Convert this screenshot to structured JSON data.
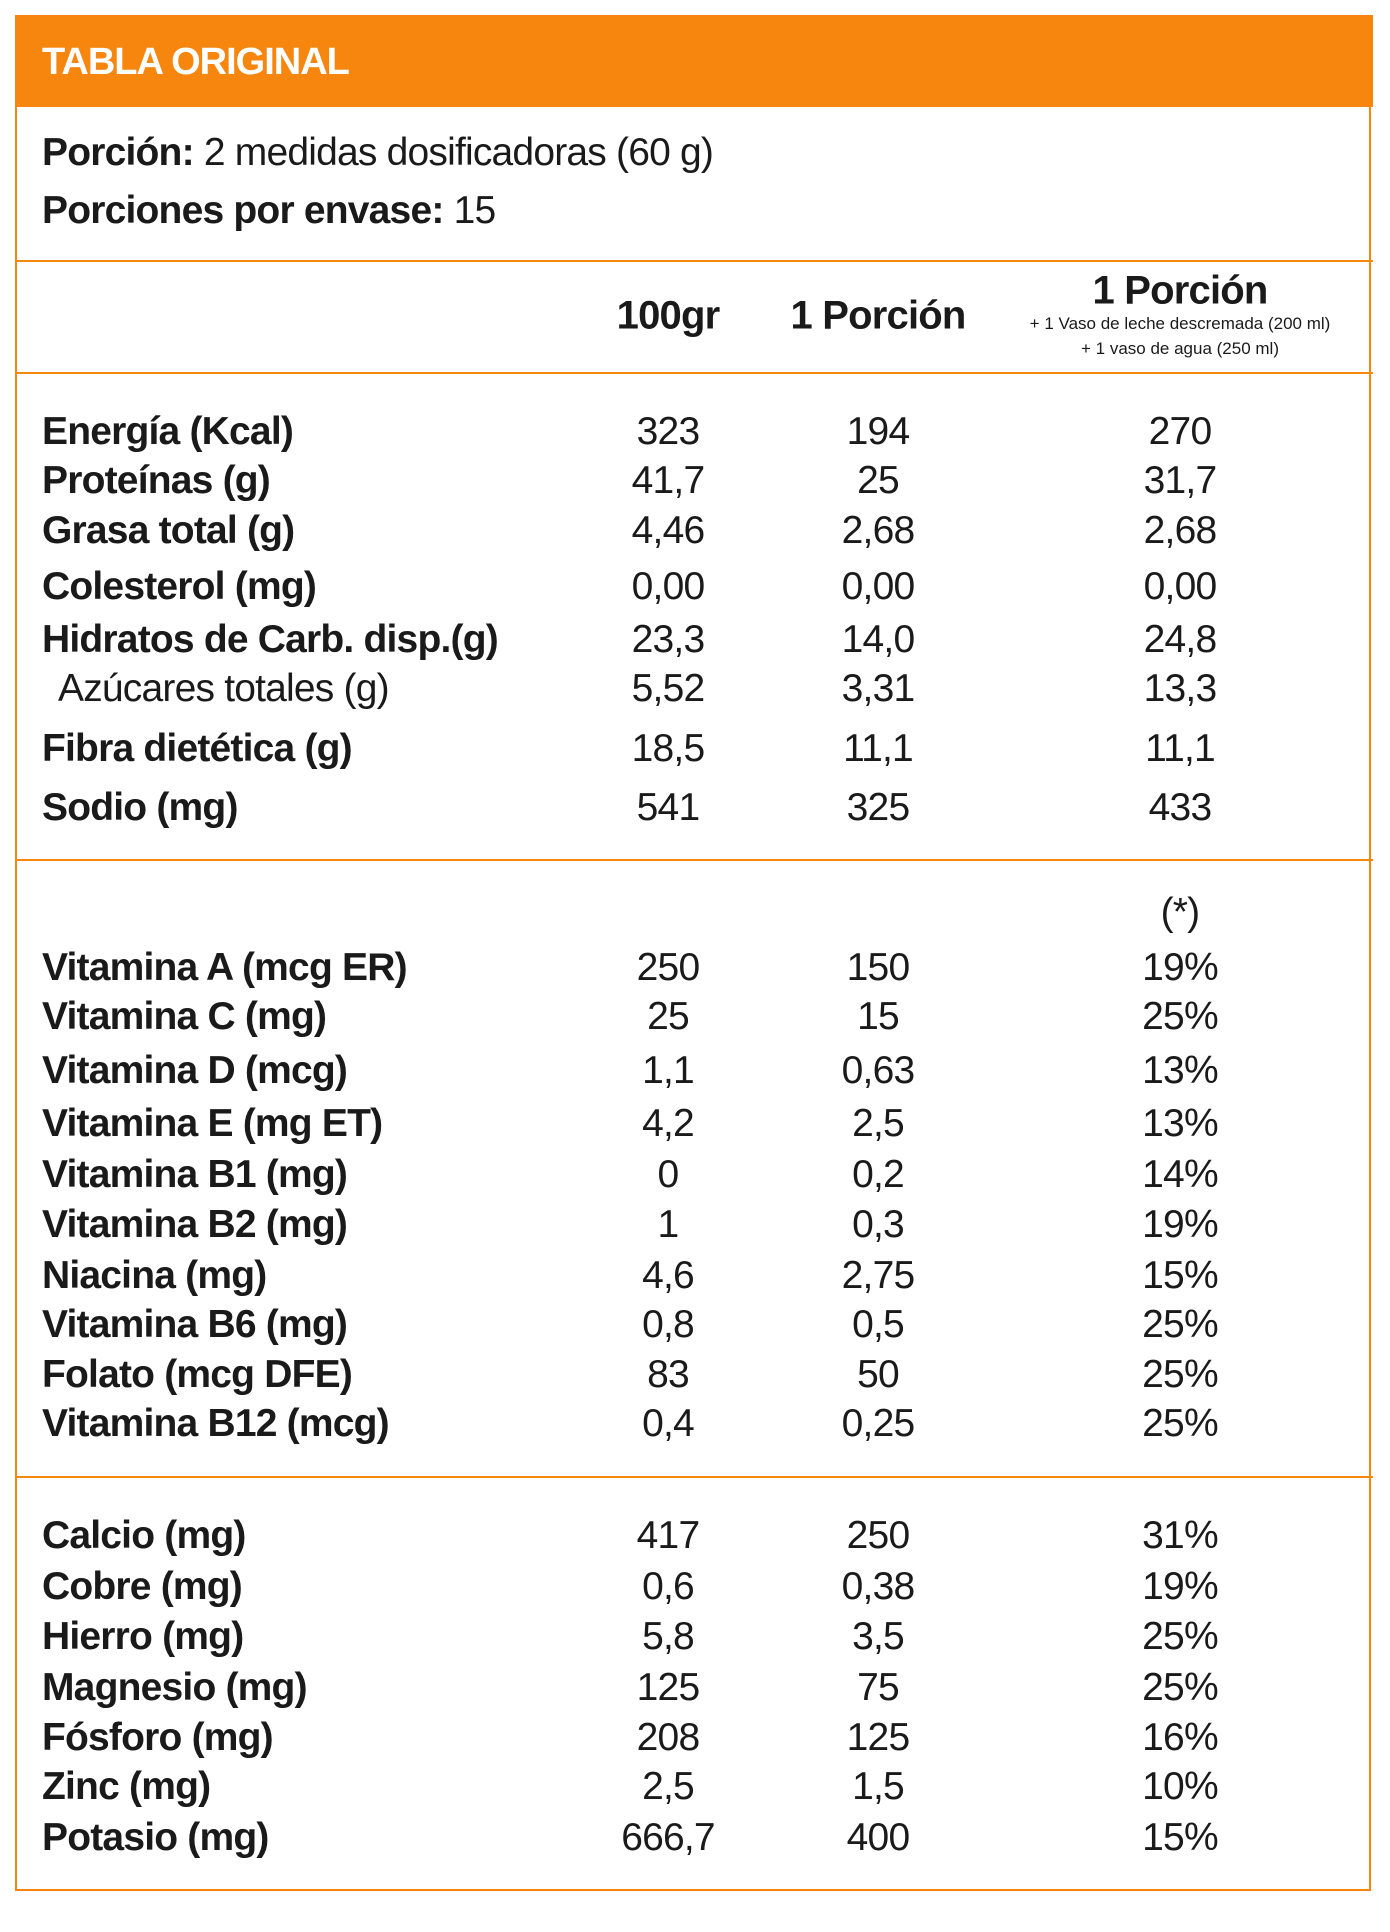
{
  "title": "TABLA ORIGINAL",
  "portion": {
    "label": "Porción:",
    "value": "2 medidas dosificadoras (60 g)"
  },
  "servings": {
    "label": "Porciones por envase:",
    "value": "15"
  },
  "columns": {
    "c1": "100gr",
    "c2": "1 Porción",
    "c3": "1 Porción",
    "c3_note1": "+ 1 Vaso de leche descremada (200 ml)",
    "c3_note2": "+ 1 vaso de agua (250 ml)"
  },
  "vitamin_note": "(*)",
  "macros": [
    {
      "label": "Energía (Kcal)",
      "v1": "323",
      "v2": "194",
      "v3": "270"
    },
    {
      "label": "Proteínas (g)",
      "v1": "41,7",
      "v2": "25",
      "v3": "31,7"
    },
    {
      "label": "Grasa total (g)",
      "v1": "4,46",
      "v2": "2,68",
      "v3": "2,68"
    },
    {
      "label": "Colesterol (mg)",
      "v1": "0,00",
      "v2": "0,00",
      "v3": "0,00"
    },
    {
      "label": "Hidratos de Carb. disp.(g)",
      "v1": "23,3",
      "v2": "14,0",
      "v3": "24,8"
    },
    {
      "label": "Azúcares totales (g)",
      "v1": "5,52",
      "v2": "3,31",
      "v3": "13,3",
      "sub": true
    },
    {
      "label": "Fibra dietética (g)",
      "v1": "18,5",
      "v2": "11,1",
      "v3": "11,1"
    },
    {
      "label": "Sodio (mg)",
      "v1": "541",
      "v2": "325",
      "v3": "433"
    }
  ],
  "vitamins": [
    {
      "label": "Vitamina A (mcg ER)",
      "v1": "250",
      "v2": "150",
      "v3": "19%"
    },
    {
      "label": "Vitamina C (mg)",
      "v1": "25",
      "v2": "15",
      "v3": "25%"
    },
    {
      "label": "Vitamina D (mcg)",
      "v1": "1,1",
      "v2": "0,63",
      "v3": "13%"
    },
    {
      "label": "Vitamina E (mg ET)",
      "v1": "4,2",
      "v2": "2,5",
      "v3": "13%"
    },
    {
      "label": "Vitamina B1 (mg)",
      "v1": "0",
      "v2": "0,2",
      "v3": "14%"
    },
    {
      "label": "Vitamina B2 (mg)",
      "v1": "1",
      "v2": "0,3",
      "v3": "19%"
    },
    {
      "label": "Niacina (mg)",
      "v1": "4,6",
      "v2": "2,75",
      "v3": "15%"
    },
    {
      "label": "Vitamina B6 (mg)",
      "v1": "0,8",
      "v2": "0,5",
      "v3": "25%"
    },
    {
      "label": "Folato (mcg DFE)",
      "v1": "83",
      "v2": "50",
      "v3": "25%"
    },
    {
      "label": "Vitamina B12 (mcg)",
      "v1": "0,4",
      "v2": "0,25",
      "v3": "25%"
    }
  ],
  "minerals": [
    {
      "label": "Calcio (mg)",
      "v1": "417",
      "v2": "250",
      "v3": "31%"
    },
    {
      "label": "Cobre (mg)",
      "v1": "0,6",
      "v2": "0,38",
      "v3": "19%"
    },
    {
      "label": "Hierro (mg)",
      "v1": "5,8",
      "v2": "3,5",
      "v3": "25%"
    },
    {
      "label": "Magnesio (mg)",
      "v1": "125",
      "v2": "75",
      "v3": "25%"
    },
    {
      "label": "Fósforo (mg)",
      "v1": "208",
      "v2": "125",
      "v3": "16%"
    },
    {
      "label": "Zinc (mg)",
      "v1": "2,5",
      "v2": "1,5",
      "v3": "10%"
    },
    {
      "label": "Potasio (mg)",
      "v1": "666,7",
      "v2": "400",
      "v3": "15%"
    }
  ],
  "colors": {
    "accent": "#F7860F"
  }
}
